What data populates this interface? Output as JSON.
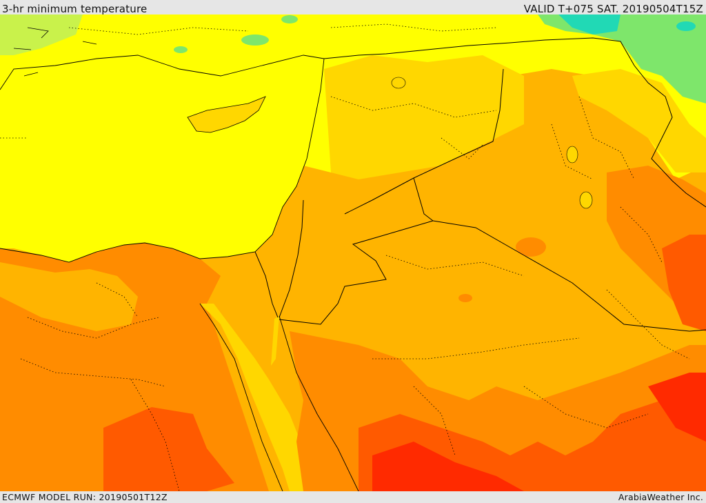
{
  "header": {
    "title": "3-hr minimum temperature",
    "valid": "VALID T+075 SAT. 20190504T15Z"
  },
  "footer": {
    "model_run": "ECMWF MODEL RUN: 20190501T12Z",
    "credit": "ArabiaWeather Inc."
  },
  "map": {
    "field": "3-hr minimum temperature",
    "colors": {
      "sea": "#ffff00",
      "cool": "#7ee66b",
      "coldest": "#21d9b5",
      "warm_yellow": "#ffd700",
      "gold": "#ffb400",
      "orange": "#ff8c00",
      "dark_orange": "#ff5a00",
      "red": "#ff2a00",
      "border": "#000000"
    }
  }
}
